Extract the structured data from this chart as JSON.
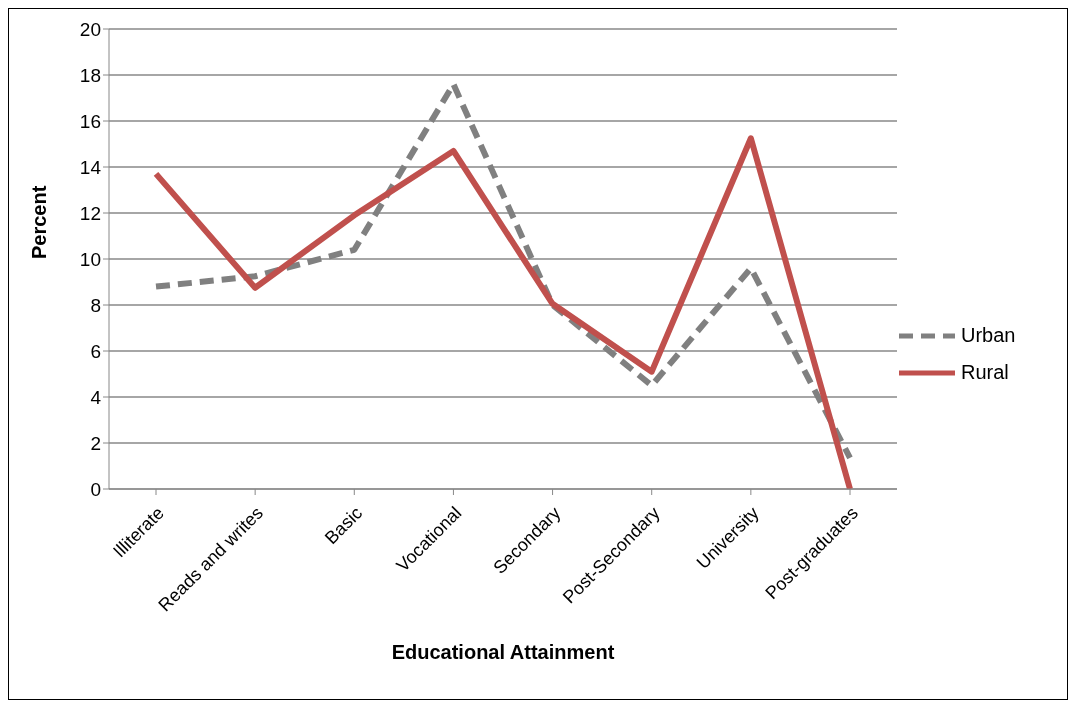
{
  "chart_data": {
    "type": "line",
    "xlabel": "Educational Attainment",
    "ylabel": "Percent",
    "categories": [
      "Illiterate",
      "Reads and writes",
      "Basic",
      "Vocational",
      "Secondary",
      "Post-Secondary",
      "University",
      "Post-graduates"
    ],
    "series": [
      {
        "name": "Urban",
        "color": "#808080",
        "line_style": "dashed",
        "values": [
          8.8,
          9.25,
          10.4,
          17.6,
          8.0,
          4.5,
          9.6,
          1.35
        ]
      },
      {
        "name": "Rural",
        "color": "#c0504d",
        "line_style": "solid",
        "values": [
          13.7,
          8.75,
          11.9,
          14.7,
          8.05,
          5.1,
          15.25,
          0
        ]
      }
    ],
    "ylim": [
      0,
      20
    ],
    "yticks": [
      0,
      2,
      4,
      6,
      8,
      10,
      12,
      14,
      16,
      18,
      20
    ],
    "grid": "y",
    "legend": "right",
    "marker": "none"
  }
}
